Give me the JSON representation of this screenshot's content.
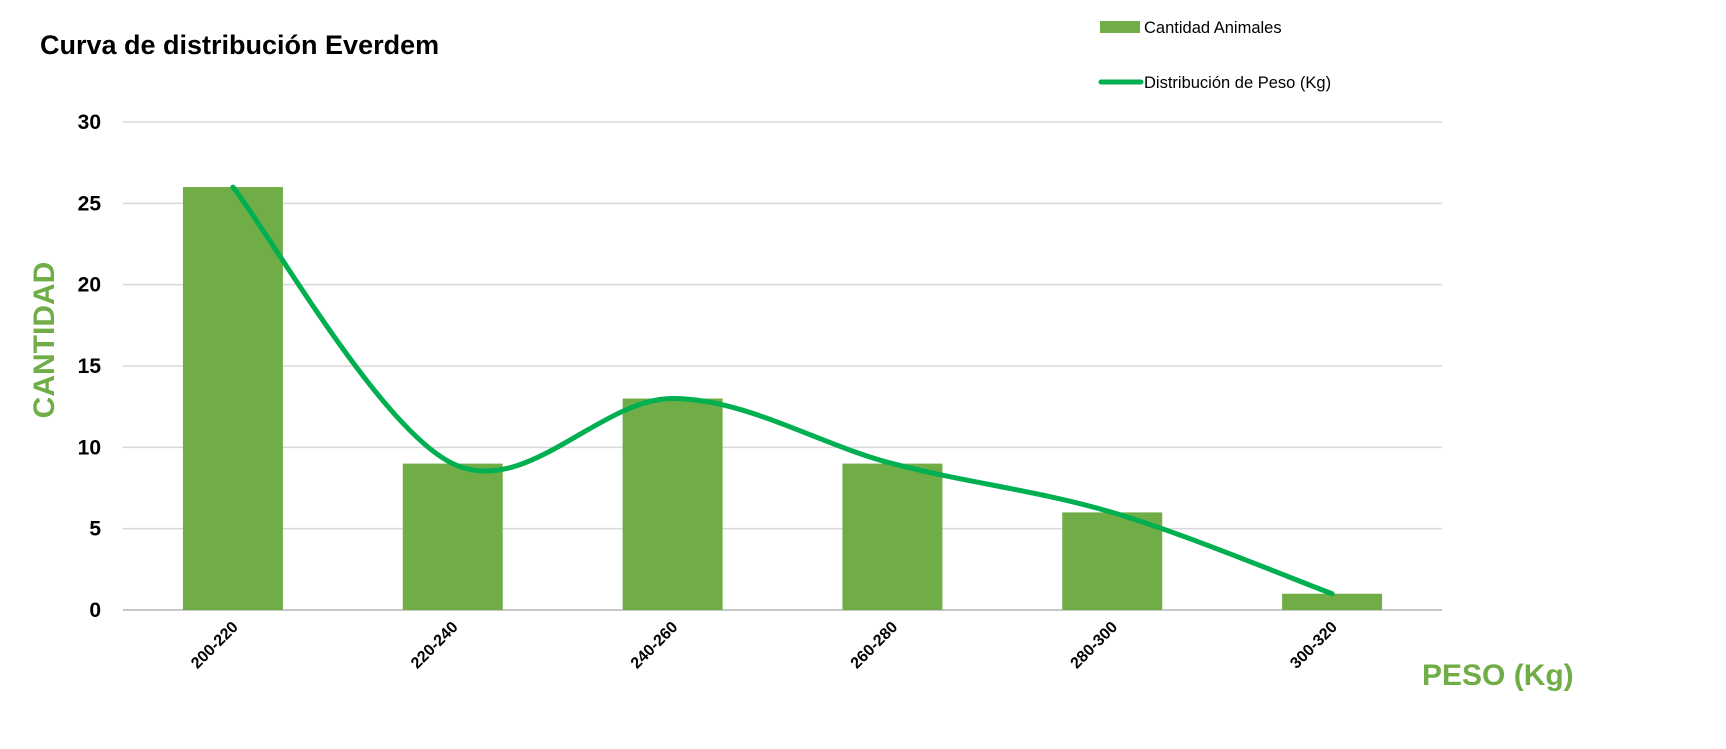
{
  "chart_data": {
    "type": "bar",
    "title": "Curva de distribución Everdem",
    "xlabel": "PESO (Kg)",
    "ylabel": "CANTIDAD",
    "categories": [
      "200-220",
      "220-240",
      "240-260",
      "260-280",
      "280-300",
      "300-320"
    ],
    "series": [
      {
        "name": "Cantidad Animales",
        "type": "bar",
        "values": [
          26,
          9,
          13,
          9,
          6,
          1
        ],
        "color": "#70AD47"
      },
      {
        "name": "Distribución de Peso (Kg)",
        "type": "line",
        "smooth": true,
        "values": [
          26,
          9,
          13,
          9,
          6,
          1
        ],
        "color": "#00B050"
      }
    ],
    "ylim": [
      0,
      30
    ],
    "yticks": [
      0,
      5,
      10,
      15,
      20,
      25,
      30
    ],
    "grid": true,
    "legend_position": "top-right",
    "axis_label_color": "#70AD47",
    "gridline_color": "#D9D9D9"
  }
}
